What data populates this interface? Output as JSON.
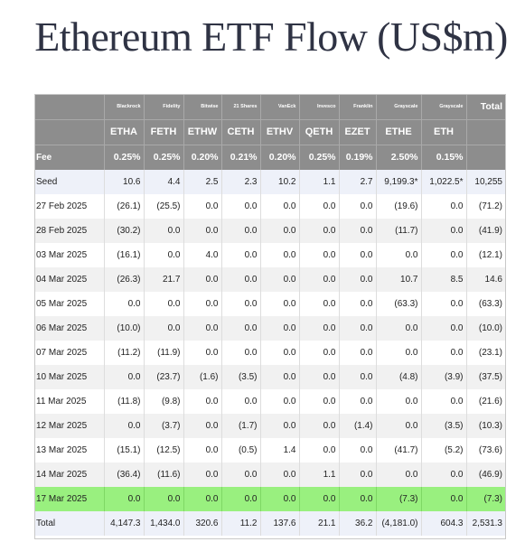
{
  "title": "Ethereum ETF Flow (US$m)",
  "header": {
    "issuers": [
      "Blackrock",
      "Fidelity",
      "Bitwise",
      "21 Shares",
      "VanEck",
      "Invesco",
      "Franklin",
      "Grayscale",
      "Grayscale"
    ],
    "total_label": "Total",
    "tickers": [
      "ETHA",
      "FETH",
      "ETHW",
      "CETH",
      "ETHV",
      "QETH",
      "EZET",
      "ETHE",
      "ETH"
    ],
    "fee_label": "Fee",
    "fees": [
      "0.25%",
      "0.25%",
      "0.20%",
      "0.21%",
      "0.20%",
      "0.25%",
      "0.19%",
      "2.50%",
      "0.15%"
    ]
  },
  "seed": {
    "label": "Seed",
    "values": [
      "10.6",
      "4.4",
      "2.5",
      "2.3",
      "10.2",
      "1.1",
      "2.7",
      "9,199.3*",
      "1,022.5*"
    ],
    "total": "10,255"
  },
  "rows": [
    {
      "date": "27 Feb 2025",
      "values": [
        "(26.1)",
        "(25.5)",
        "0.0",
        "0.0",
        "0.0",
        "0.0",
        "0.0",
        "(19.6)",
        "0.0"
      ],
      "total": "(71.2)"
    },
    {
      "date": "28 Feb 2025",
      "values": [
        "(30.2)",
        "0.0",
        "0.0",
        "0.0",
        "0.0",
        "0.0",
        "0.0",
        "(11.7)",
        "0.0"
      ],
      "total": "(41.9)"
    },
    {
      "date": "03 Mar 2025",
      "values": [
        "(16.1)",
        "0.0",
        "4.0",
        "0.0",
        "0.0",
        "0.0",
        "0.0",
        "0.0",
        "0.0"
      ],
      "total": "(12.1)"
    },
    {
      "date": "04 Mar 2025",
      "values": [
        "(26.3)",
        "21.7",
        "0.0",
        "0.0",
        "0.0",
        "0.0",
        "0.0",
        "10.7",
        "8.5"
      ],
      "total": "14.6"
    },
    {
      "date": "05 Mar 2025",
      "values": [
        "0.0",
        "0.0",
        "0.0",
        "0.0",
        "0.0",
        "0.0",
        "0.0",
        "(63.3)",
        "0.0"
      ],
      "total": "(63.3)"
    },
    {
      "date": "06 Mar 2025",
      "values": [
        "(10.0)",
        "0.0",
        "0.0",
        "0.0",
        "0.0",
        "0.0",
        "0.0",
        "0.0",
        "0.0"
      ],
      "total": "(10.0)"
    },
    {
      "date": "07 Mar 2025",
      "values": [
        "(11.2)",
        "(11.9)",
        "0.0",
        "0.0",
        "0.0",
        "0.0",
        "0.0",
        "0.0",
        "0.0"
      ],
      "total": "(23.1)"
    },
    {
      "date": "10 Mar 2025",
      "values": [
        "0.0",
        "(23.7)",
        "(1.6)",
        "(3.5)",
        "0.0",
        "0.0",
        "0.0",
        "(4.8)",
        "(3.9)"
      ],
      "total": "(37.5)"
    },
    {
      "date": "11 Mar 2025",
      "values": [
        "(11.8)",
        "(9.8)",
        "0.0",
        "0.0",
        "0.0",
        "0.0",
        "0.0",
        "0.0",
        "0.0"
      ],
      "total": "(21.6)"
    },
    {
      "date": "12 Mar 2025",
      "values": [
        "0.0",
        "(3.7)",
        "0.0",
        "(1.7)",
        "0.0",
        "0.0",
        "(1.4)",
        "0.0",
        "(3.5)"
      ],
      "total": "(10.3)"
    },
    {
      "date": "13 Mar 2025",
      "values": [
        "(15.1)",
        "(12.5)",
        "0.0",
        "(0.5)",
        "1.4",
        "0.0",
        "0.0",
        "(41.7)",
        "(5.2)"
      ],
      "total": "(73.6)"
    },
    {
      "date": "14 Mar 2025",
      "values": [
        "(36.4)",
        "(11.6)",
        "0.0",
        "0.0",
        "0.0",
        "1.1",
        "0.0",
        "0.0",
        "0.0"
      ],
      "total": "(46.9)"
    },
    {
      "date": "17 Mar 2025",
      "values": [
        "0.0",
        "0.0",
        "0.0",
        "0.0",
        "0.0",
        "0.0",
        "0.0",
        "(7.3)",
        "0.0"
      ],
      "total": "(7.3)",
      "highlight": true
    }
  ],
  "totals": {
    "label": "Total",
    "values": [
      "4,147.3",
      "1,434.0",
      "320.6",
      "11.2",
      "137.6",
      "21.1",
      "36.2",
      "(4,181.0)",
      "604.3"
    ],
    "total": "2,531.3"
  },
  "colors": {
    "header_bg": "#8d8d8d",
    "negative": "#e01b1b",
    "highlight_row": "#99f07f",
    "alt_row": "#f1f1f1",
    "seed_total_row": "#eef1f9",
    "title": "#2f3344"
  }
}
